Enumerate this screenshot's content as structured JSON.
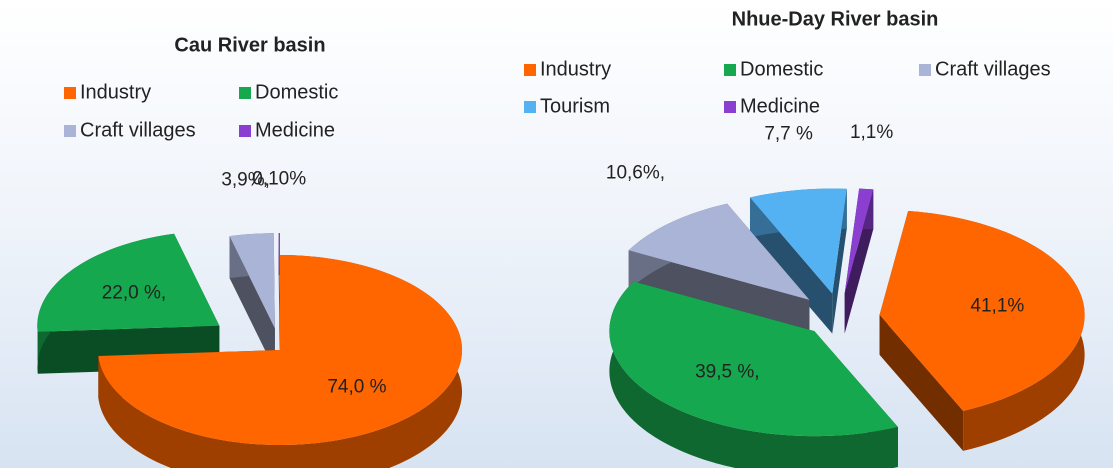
{
  "chart_data": [
    {
      "type": "pie3d",
      "title": "Cau River basin",
      "categories": [
        "Industry",
        "Domestic",
        "Craft villages",
        "Medicine"
      ],
      "values": [
        74.0,
        22.0,
        3.9,
        0.1
      ],
      "value_labels": [
        "74,0 %",
        "22,0 %,",
        "3,9%,",
        "0,10%"
      ],
      "colors": [
        "#ff6600",
        "#16a84e",
        "#aab4d6",
        "#8b3fd0"
      ]
    },
    {
      "type": "pie3d",
      "title": "Nhue-Day River basin",
      "categories": [
        "Industry",
        "Domestic",
        "Craft villages",
        "Tourism",
        "Medicine"
      ],
      "values": [
        41.1,
        39.5,
        10.6,
        7.7,
        1.1
      ],
      "value_labels": [
        "41,1%",
        "39,5 %,",
        "10,6%,",
        "7,7 %",
        "1,1%"
      ],
      "colors": [
        "#ff6600",
        "#16a84e",
        "#aab4d6",
        "#55b2f2",
        "#8b3fd0"
      ]
    }
  ]
}
